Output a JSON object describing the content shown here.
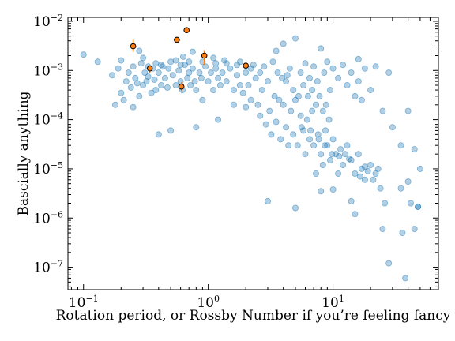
{
  "chart_data": {
    "type": "scatter",
    "xlabel": "Rotation period, or Rossby Number if you’re feeling fancy",
    "ylabel": "Bascially anything",
    "xscale": "log",
    "yscale": "log",
    "xlim": [
      0.075,
      70
    ],
    "ylim": [
      3.5e-08,
      0.012
    ],
    "x_ticks": [
      {
        "value": 0.1,
        "base": "10",
        "exp": "−1"
      },
      {
        "value": 1,
        "base": "10",
        "exp": "0"
      },
      {
        "value": 10,
        "base": "10",
        "exp": "1"
      }
    ],
    "y_ticks": [
      {
        "value": 1e-07,
        "base": "10",
        "exp": "−7"
      },
      {
        "value": 1e-06,
        "base": "10",
        "exp": "−6"
      },
      {
        "value": 1e-05,
        "base": "10",
        "exp": "−5"
      },
      {
        "value": 0.0001,
        "base": "10",
        "exp": "−4"
      },
      {
        "value": 0.001,
        "base": "10",
        "exp": "−3"
      },
      {
        "value": 0.01,
        "base": "10",
        "exp": "−2"
      }
    ],
    "grid": false,
    "series": [
      {
        "marker_color": "#1f77b4",
        "opacity": 0.35,
        "points": [
          [
            0.1,
            0.0021
          ],
          [
            0.13,
            0.0015
          ],
          [
            0.17,
            0.0008
          ],
          [
            0.19,
            0.0011
          ],
          [
            0.2,
            0.0016
          ],
          [
            0.2,
            0.00035
          ],
          [
            0.21,
            0.00025
          ],
          [
            0.22,
            0.0006
          ],
          [
            0.23,
            0.0009
          ],
          [
            0.24,
            0.00045
          ],
          [
            0.25,
            0.0012
          ],
          [
            0.26,
            0.0007
          ],
          [
            0.27,
            0.00055
          ],
          [
            0.28,
            0.0003
          ],
          [
            0.29,
            0.0014
          ],
          [
            0.3,
            0.0005
          ],
          [
            0.31,
            0.0009
          ],
          [
            0.32,
            0.0006
          ],
          [
            0.33,
            0.00075
          ],
          [
            0.35,
            0.00035
          ],
          [
            0.36,
            0.0011
          ],
          [
            0.37,
            0.00065
          ],
          [
            0.38,
            0.0004
          ],
          [
            0.4,
            0.0009
          ],
          [
            0.42,
            0.0005
          ],
          [
            0.43,
            0.0012
          ],
          [
            0.45,
            0.0007
          ],
          [
            0.47,
            0.00045
          ],
          [
            0.5,
            0.0015
          ],
          [
            0.52,
            0.0008
          ],
          [
            0.55,
            0.0005
          ],
          [
            0.58,
            0.001
          ],
          [
            0.6,
            0.0006
          ],
          [
            0.62,
            0.0004
          ],
          [
            0.65,
            0.0013
          ],
          [
            0.68,
            0.0007
          ],
          [
            0.7,
            0.0009
          ],
          [
            0.72,
            0.0005
          ],
          [
            0.75,
            0.0011
          ],
          [
            0.78,
            0.0006
          ],
          [
            0.8,
            0.0004
          ],
          [
            0.85,
            0.0009
          ],
          [
            0.88,
            0.0007
          ],
          [
            0.9,
            0.00025
          ],
          [
            0.95,
            0.0012
          ],
          [
            1.0,
            0.0006
          ],
          [
            1.05,
            0.0009
          ],
          [
            1.1,
            0.0004
          ],
          [
            1.15,
            0.0011
          ],
          [
            1.2,
            0.0007
          ],
          [
            1.25,
            0.0005
          ],
          [
            1.3,
            0.0009
          ],
          [
            1.4,
            0.0006
          ],
          [
            1.5,
            0.0011
          ],
          [
            1.6,
            0.0004
          ],
          [
            1.7,
            0.0008
          ],
          [
            1.8,
            0.0005
          ],
          [
            1.9,
            0.00035
          ],
          [
            2.0,
            0.0009
          ],
          [
            2.1,
            0.0005
          ],
          [
            2.2,
            0.00025
          ],
          [
            2.4,
            0.0007
          ],
          [
            2.5,
            0.0002
          ],
          [
            2.6,
            0.00012
          ],
          [
            2.7,
            0.0004
          ],
          [
            2.9,
            8e-05
          ],
          [
            3.0,
            0.0006
          ],
          [
            3.1,
            0.00015
          ],
          [
            3.2,
            5e-05
          ],
          [
            3.4,
            0.0003
          ],
          [
            3.5,
            9e-05
          ],
          [
            3.7,
            0.00025
          ],
          [
            3.8,
            4e-05
          ],
          [
            4.0,
            0.0002
          ],
          [
            4.2,
            7e-05
          ],
          [
            4.4,
            3e-05
          ],
          [
            4.6,
            0.00015
          ],
          [
            4.8,
            5e-05
          ],
          [
            5.0,
            0.00025
          ],
          [
            5.2,
            3e-05
          ],
          [
            5.5,
            0.00012
          ],
          [
            5.8,
            6e-05
          ],
          [
            6.0,
            2e-05
          ],
          [
            6.2,
            0.0001
          ],
          [
            6.5,
            4e-05
          ],
          [
            6.8,
            0.00015
          ],
          [
            7.0,
            3e-05
          ],
          [
            7.3,
            8e-06
          ],
          [
            7.6,
            5e-05
          ],
          [
            8.0,
            2e-05
          ],
          [
            8.3,
            1.2e-05
          ],
          [
            8.7,
            6e-05
          ],
          [
            9.0,
            3e-05
          ],
          [
            9.5,
            1.5e-05
          ],
          [
            10,
            4e-05
          ],
          [
            10.5,
            2e-05
          ],
          [
            11,
            8e-06
          ],
          [
            11.5,
            2.5e-05
          ],
          [
            12,
            1.2e-05
          ],
          [
            13,
            3e-05
          ],
          [
            14,
            1.5e-05
          ],
          [
            15,
            8e-06
          ],
          [
            16,
            2e-05
          ],
          [
            17,
            1e-05
          ],
          [
            18,
            6e-06
          ],
          [
            20,
            1.2e-05
          ],
          [
            22,
            8e-06
          ],
          [
            24,
            4e-06
          ],
          [
            26,
            2e-06
          ],
          [
            0.18,
            0.0002
          ],
          [
            0.25,
            0.00018
          ],
          [
            0.4,
            5e-05
          ],
          [
            0.5,
            6e-05
          ],
          [
            0.8,
            7e-05
          ],
          [
            1.2,
            0.0001
          ],
          [
            1.6,
            0.0002
          ],
          [
            2.0,
            0.00018
          ],
          [
            3.0,
            2.2e-06
          ],
          [
            5.0,
            1.6e-06
          ],
          [
            8,
            3.5e-06
          ],
          [
            10,
            3.8e-06
          ],
          [
            14,
            2.2e-06
          ],
          [
            15,
            1.2e-06
          ],
          [
            18,
            1.1e-05
          ],
          [
            25,
            6e-07
          ],
          [
            28,
            1.2e-07
          ],
          [
            35,
            4e-06
          ],
          [
            40,
            5.5e-06
          ],
          [
            42,
            2e-06
          ],
          [
            45,
            6e-07
          ],
          [
            36,
            5e-07
          ],
          [
            38,
            6e-08
          ],
          [
            48,
            1.7e-06
          ],
          [
            48,
            1.7e-06
          ],
          [
            0.28,
            0.0025
          ],
          [
            0.3,
            0.0018
          ],
          [
            0.42,
            0.0013
          ],
          [
            0.55,
            0.0016
          ],
          [
            0.63,
            0.0019
          ],
          [
            0.75,
            0.0024
          ],
          [
            1.1,
            0.0018
          ],
          [
            1.4,
            0.0014
          ],
          [
            1.8,
            0.0015
          ],
          [
            2.3,
            0.0013
          ],
          [
            2.8,
            0.0012
          ],
          [
            3.3,
            0.0015
          ],
          [
            3.5,
            0.0025
          ],
          [
            4.0,
            0.0035
          ],
          [
            4.5,
            0.0011
          ],
          [
            5.0,
            0.0045
          ],
          [
            5.5,
            0.0009
          ],
          [
            6.0,
            0.0014
          ],
          [
            6.5,
            0.0007
          ],
          [
            7.0,
            0.0012
          ],
          [
            7.5,
            0.0006
          ],
          [
            8.0,
            0.0028
          ],
          [
            8.5,
            0.0009
          ],
          [
            9.0,
            0.0015
          ],
          [
            9.5,
            0.0004
          ],
          [
            10,
            0.0011
          ],
          [
            11,
            0.0007
          ],
          [
            12,
            0.0013
          ],
          [
            13,
            0.0005
          ],
          [
            14,
            0.0009
          ],
          [
            15,
            0.0003
          ],
          [
            16,
            0.0006
          ],
          [
            17,
            0.00025
          ],
          [
            20,
            0.0004
          ],
          [
            22,
            0.0012
          ],
          [
            25,
            0.00015
          ],
          [
            28,
            0.0009
          ],
          [
            30,
            7e-05
          ],
          [
            35,
            3e-05
          ],
          [
            40,
            0.00015
          ],
          [
            45,
            2.5e-05
          ],
          [
            50,
            1e-05
          ],
          [
            16,
            0.0017
          ],
          [
            18,
            0.0011
          ],
          [
            4.2,
            0.0006
          ],
          [
            4.8,
            0.0004
          ],
          [
            5.3,
            0.0003
          ],
          [
            5.8,
            0.0005
          ],
          [
            6.3,
            0.0003
          ],
          [
            6.8,
            0.0004
          ],
          [
            7.3,
            0.0002
          ],
          [
            7.8,
            0.0003
          ],
          [
            8.3,
            0.00015
          ],
          [
            8.8,
            0.0002
          ],
          [
            9.3,
            0.0001
          ],
          [
            3.6,
            0.0009
          ],
          [
            3.9,
            0.0007
          ],
          [
            4.3,
            0.0008
          ],
          [
            2.6,
            0.0009
          ],
          [
            2.2,
            0.0011
          ],
          [
            1.7,
            0.0013
          ],
          [
            1.35,
            0.0016
          ],
          [
            1.15,
            0.0014
          ],
          [
            0.9,
            0.0015
          ],
          [
            0.7,
            0.0015
          ],
          [
            0.6,
            0.0013
          ],
          [
            0.48,
            0.0011
          ],
          [
            0.38,
            0.0014
          ],
          [
            0.33,
            0.0012
          ],
          [
            5.6,
            7e-05
          ],
          [
            6.6,
            6e-05
          ],
          [
            7.7,
            4e-05
          ],
          [
            8.6,
            3e-05
          ],
          [
            9.8,
            2e-05
          ],
          [
            11.2,
            1.8e-05
          ],
          [
            12.5,
            2e-05
          ],
          [
            13.5,
            1.6e-05
          ],
          [
            16.5,
            7e-06
          ],
          [
            19,
            9e-06
          ],
          [
            21,
            6e-06
          ],
          [
            23,
            1e-05
          ]
        ]
      },
      {
        "marker_color": "#ff7f0e",
        "edge_color": "#000000",
        "opacity": 1,
        "points": [
          {
            "x": 0.25,
            "y": 0.0031,
            "ylo": 0.0024,
            "yhi": 0.0042
          },
          {
            "x": 0.34,
            "y": 0.0011,
            "ylo": 0.0009,
            "yhi": 0.0013
          },
          {
            "x": 0.56,
            "y": 0.0042,
            "ylo": 0.0037,
            "yhi": 0.0048
          },
          {
            "x": 0.61,
            "y": 0.00047,
            "ylo": 0.00038,
            "yhi": 0.00058
          },
          {
            "x": 0.67,
            "y": 0.0066,
            "ylo": 0.006,
            "yhi": 0.0072
          },
          {
            "x": 0.93,
            "y": 0.002,
            "ylo": 0.0013,
            "yhi": 0.0026
          },
          {
            "x": 2.0,
            "y": 0.00125,
            "ylo": 0.00115,
            "yhi": 0.00135
          }
        ]
      }
    ]
  }
}
